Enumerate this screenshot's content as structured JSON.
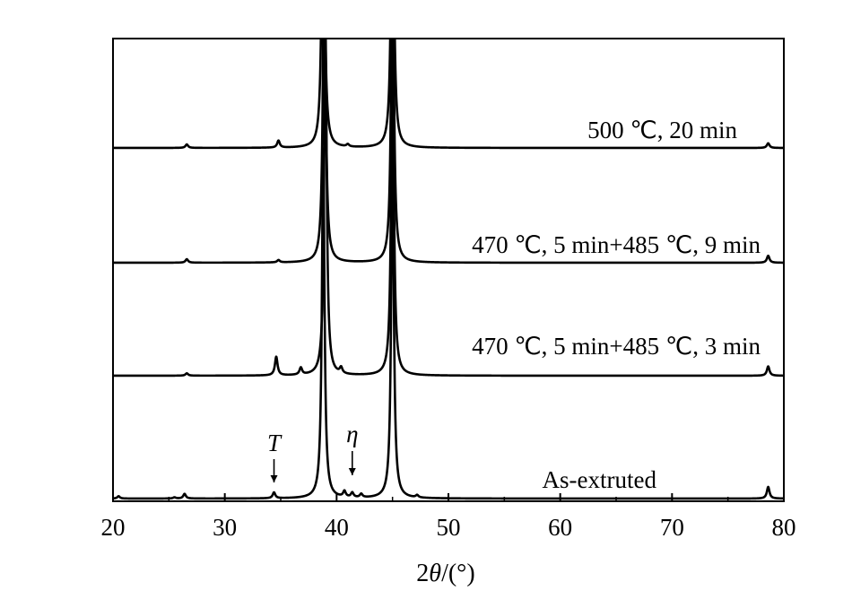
{
  "chart_data": {
    "type": "line",
    "xlabel_prefix": "2",
    "xlabel_symbol": "θ",
    "xlabel_suffix": "/(°)",
    "xlim": [
      20,
      80
    ],
    "xticks": [
      20,
      30,
      40,
      50,
      60,
      70,
      80
    ],
    "grid": false,
    "legend": "none",
    "series": [
      {
        "name": "500 ℃, 20 min",
        "baseline": 0,
        "peaks": [
          {
            "x": 26.6,
            "height": 0.03
          },
          {
            "x": 34.8,
            "height": 0.06
          },
          {
            "x": 38.8,
            "height": 3.0
          },
          {
            "x": 41.0,
            "height": 0.02
          },
          {
            "x": 45.0,
            "height": 3.0
          },
          {
            "x": 78.6,
            "height": 0.04
          }
        ]
      },
      {
        "name": "470 ℃, 5 min+485 ℃, 9 min",
        "baseline": 0,
        "peaks": [
          {
            "x": 26.6,
            "height": 0.03
          },
          {
            "x": 34.8,
            "height": 0.02
          },
          {
            "x": 38.9,
            "height": 3.0
          },
          {
            "x": 45.0,
            "height": 3.0
          },
          {
            "x": 78.6,
            "height": 0.06
          }
        ]
      },
      {
        "name": "470 ℃, 5 min+485 ℃, 3 min",
        "baseline": 0,
        "peaks": [
          {
            "x": 26.6,
            "height": 0.02
          },
          {
            "x": 34.6,
            "height": 0.16
          },
          {
            "x": 36.8,
            "height": 0.06
          },
          {
            "x": 39.0,
            "height": 3.0
          },
          {
            "x": 40.4,
            "height": 0.05
          },
          {
            "x": 45.0,
            "height": 3.0
          },
          {
            "x": 78.6,
            "height": 0.08
          }
        ]
      },
      {
        "name": "As-extruted",
        "baseline": 0,
        "peaks": [
          {
            "x": 20.5,
            "height": 0.02
          },
          {
            "x": 25.5,
            "height": 0.01
          },
          {
            "x": 26.4,
            "height": 0.04
          },
          {
            "x": 34.4,
            "height": 0.05
          },
          {
            "x": 38.8,
            "height": 3.0
          },
          {
            "x": 40.7,
            "height": 0.05
          },
          {
            "x": 41.4,
            "height": 0.04
          },
          {
            "x": 42.2,
            "height": 0.03
          },
          {
            "x": 45.0,
            "height": 3.0
          },
          {
            "x": 47.2,
            "height": 0.02
          },
          {
            "x": 78.6,
            "height": 0.1
          }
        ]
      }
    ],
    "annotations": [
      {
        "text": "T",
        "x": 34.4,
        "series": "As-extruted"
      },
      {
        "text": "η",
        "x": 41.4,
        "series": "As-extruted"
      }
    ]
  }
}
